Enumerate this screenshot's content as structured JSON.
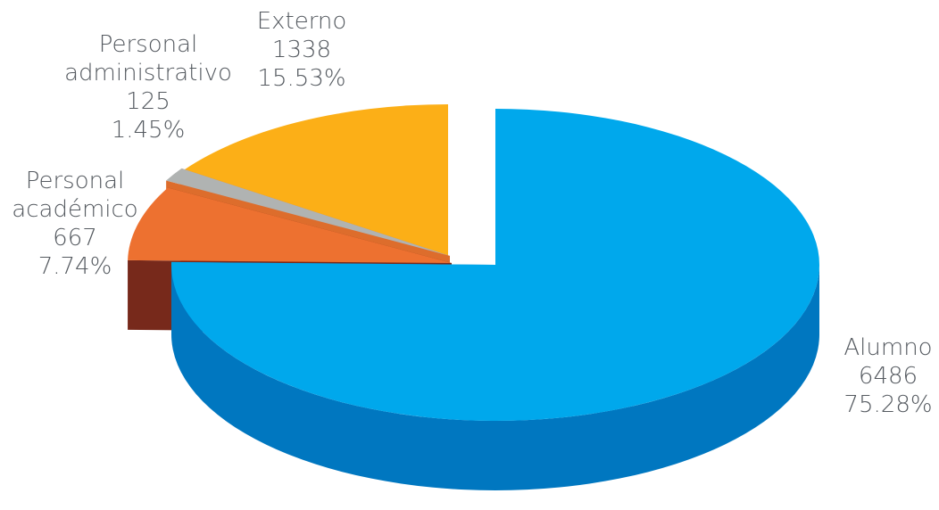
{
  "chart_data": {
    "type": "pie",
    "slices": [
      {
        "label_lines": [
          "Alumno"
        ],
        "value": 6486,
        "percent": "75.28%",
        "color": "#00a8ec",
        "side_color": "#0077c0"
      },
      {
        "label_lines": [
          "Personal",
          "académico"
        ],
        "value": 667,
        "percent": "7.74%",
        "color": "#ed7130",
        "side_color": "#77291b"
      },
      {
        "label_lines": [
          "Personal",
          "administrativo"
        ],
        "value": 125,
        "percent": "1.45%",
        "color": "#b0b3b2",
        "side_color": "#dd6d2c"
      },
      {
        "label_lines": [
          "Externo"
        ],
        "value": 1338,
        "percent": "15.53%",
        "color": "#fcaf17",
        "side_color": "#c9860c"
      }
    ],
    "view": "3d-exploded",
    "legend": "none"
  }
}
